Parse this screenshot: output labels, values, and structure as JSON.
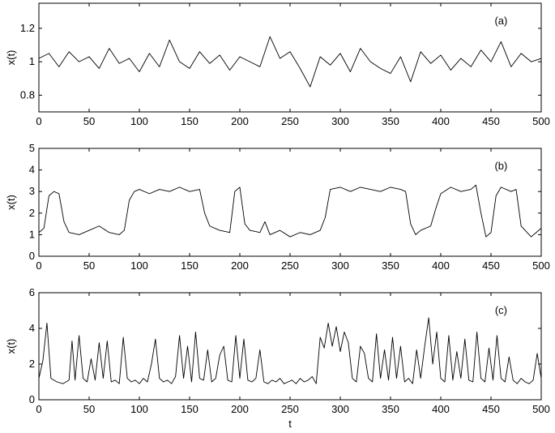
{
  "chart_data": [
    {
      "type": "line",
      "panel_label": "(a)",
      "xlabel": "",
      "ylabel": "x(t)",
      "xlim": [
        0,
        500
      ],
      "ylim": [
        0.7,
        1.35
      ],
      "xticks": [
        0,
        50,
        100,
        150,
        200,
        250,
        300,
        350,
        400,
        450,
        500
      ],
      "xtick_labels": [
        "0",
        "50",
        "100",
        "150",
        "200",
        "250",
        "300",
        "350",
        "400",
        "450",
        "500"
      ],
      "yticks": [
        0.8,
        1.0,
        1.2
      ],
      "ytick_labels": [
        "0.8",
        "1",
        "1.2"
      ],
      "grid": false,
      "line_color": "#000000",
      "series": [
        {
          "x": [
            0,
            10,
            20,
            30,
            40,
            50,
            60,
            70,
            80,
            90,
            100,
            110,
            120,
            130,
            140,
            150,
            160,
            170,
            180,
            190,
            200,
            210,
            220,
            230,
            240,
            250,
            260,
            270,
            280,
            290,
            300,
            310,
            320,
            330,
            340,
            350,
            360,
            370,
            380,
            390,
            400,
            410,
            420,
            430,
            440,
            450,
            460,
            470,
            480,
            490,
            500
          ],
          "y": [
            1.02,
            1.05,
            0.97,
            1.06,
            1.0,
            1.03,
            0.96,
            1.08,
            0.99,
            1.02,
            0.94,
            1.05,
            0.97,
            1.13,
            1.0,
            0.96,
            1.06,
            0.99,
            1.04,
            0.95,
            1.03,
            1.0,
            0.97,
            1.15,
            1.02,
            1.06,
            0.96,
            0.85,
            1.03,
            0.98,
            1.05,
            0.94,
            1.08,
            1.0,
            0.96,
            0.93,
            1.03,
            0.88,
            1.06,
            0.99,
            1.04,
            0.95,
            1.02,
            0.97,
            1.07,
            1.0,
            1.12,
            0.97,
            1.05,
            1.0,
            1.02
          ]
        }
      ]
    },
    {
      "type": "line",
      "panel_label": "(b)",
      "xlabel": "",
      "ylabel": "x(t)",
      "xlim": [
        0,
        500
      ],
      "ylim": [
        0,
        5
      ],
      "xticks": [
        0,
        50,
        100,
        150,
        200,
        250,
        300,
        350,
        400,
        450,
        500
      ],
      "xtick_labels": [
        "0",
        "50",
        "100",
        "150",
        "200",
        "250",
        "300",
        "350",
        "400",
        "450",
        "500"
      ],
      "yticks": [
        0,
        1,
        2,
        3,
        4,
        5
      ],
      "ytick_labels": [
        "0",
        "1",
        "2",
        "3",
        "4",
        "5"
      ],
      "grid": false,
      "line_color": "#000000",
      "series": [
        {
          "x": [
            0,
            5,
            10,
            15,
            20,
            25,
            30,
            40,
            50,
            60,
            70,
            80,
            85,
            90,
            95,
            100,
            110,
            120,
            130,
            140,
            150,
            160,
            165,
            170,
            180,
            190,
            195,
            200,
            205,
            210,
            220,
            225,
            230,
            240,
            250,
            260,
            270,
            280,
            285,
            290,
            300,
            310,
            320,
            330,
            340,
            350,
            360,
            365,
            370,
            375,
            380,
            390,
            395,
            400,
            410,
            420,
            430,
            435,
            440,
            445,
            450,
            455,
            460,
            470,
            475,
            480,
            490,
            495,
            500
          ],
          "y": [
            1.1,
            1.3,
            2.8,
            3.0,
            2.9,
            1.6,
            1.1,
            1.0,
            1.2,
            1.4,
            1.1,
            1.0,
            1.2,
            2.6,
            3.0,
            3.1,
            2.9,
            3.1,
            3.0,
            3.2,
            3.0,
            3.1,
            2.0,
            1.4,
            1.2,
            1.1,
            3.0,
            3.2,
            1.5,
            1.2,
            1.1,
            1.6,
            1.0,
            1.2,
            0.9,
            1.1,
            1.0,
            1.2,
            1.8,
            3.1,
            3.2,
            3.0,
            3.2,
            3.1,
            3.0,
            3.2,
            3.1,
            3.0,
            1.5,
            1.0,
            1.2,
            1.4,
            2.2,
            2.9,
            3.2,
            3.0,
            3.1,
            3.3,
            2.0,
            0.9,
            1.1,
            2.8,
            3.2,
            3.0,
            3.1,
            1.4,
            0.9,
            1.1,
            1.3
          ]
        }
      ]
    },
    {
      "type": "line",
      "panel_label": "(c)",
      "xlabel": "t",
      "ylabel": "x(t)",
      "xlim": [
        0,
        500
      ],
      "ylim": [
        0,
        6
      ],
      "xticks": [
        0,
        50,
        100,
        150,
        200,
        250,
        300,
        350,
        400,
        450,
        500
      ],
      "xtick_labels": [
        "0",
        "50",
        "100",
        "150",
        "200",
        "250",
        "300",
        "350",
        "400",
        "450",
        "500"
      ],
      "yticks": [
        0,
        2,
        4,
        6
      ],
      "ytick_labels": [
        "0",
        "2",
        "4",
        "6"
      ],
      "grid": false,
      "line_color": "#000000",
      "series": [
        {
          "x": [
            0,
            4,
            8,
            12,
            18,
            24,
            30,
            33,
            36,
            40,
            44,
            48,
            52,
            56,
            60,
            64,
            68,
            72,
            76,
            80,
            84,
            88,
            92,
            96,
            100,
            104,
            108,
            112,
            116,
            120,
            124,
            128,
            132,
            136,
            140,
            144,
            148,
            152,
            156,
            160,
            164,
            168,
            172,
            176,
            180,
            184,
            188,
            192,
            196,
            200,
            204,
            208,
            212,
            216,
            220,
            224,
            228,
            232,
            236,
            240,
            244,
            248,
            252,
            256,
            260,
            264,
            268,
            272,
            276,
            280,
            284,
            288,
            292,
            296,
            300,
            304,
            308,
            312,
            316,
            320,
            324,
            328,
            332,
            336,
            340,
            344,
            348,
            352,
            356,
            360,
            364,
            368,
            372,
            376,
            380,
            384,
            388,
            392,
            396,
            400,
            404,
            408,
            412,
            416,
            420,
            424,
            428,
            432,
            436,
            440,
            444,
            448,
            452,
            456,
            460,
            464,
            468,
            472,
            476,
            480,
            484,
            488,
            492,
            496,
            500
          ],
          "y": [
            1.2,
            2.2,
            4.3,
            1.2,
            1.0,
            0.9,
            1.1,
            3.3,
            1.1,
            3.6,
            1.2,
            1.0,
            2.3,
            1.1,
            3.2,
            1.2,
            3.3,
            1.0,
            1.1,
            0.9,
            3.5,
            1.2,
            1.0,
            1.1,
            0.9,
            1.2,
            1.0,
            2.0,
            3.4,
            1.2,
            1.0,
            1.1,
            0.9,
            1.3,
            3.6,
            1.2,
            3.0,
            1.0,
            3.8,
            1.2,
            1.1,
            2.8,
            1.0,
            1.2,
            2.5,
            3.0,
            1.1,
            1.0,
            3.6,
            1.2,
            3.4,
            1.1,
            1.0,
            1.2,
            2.8,
            1.0,
            0.9,
            1.1,
            1.0,
            1.2,
            0.9,
            1.0,
            1.1,
            0.9,
            1.2,
            1.0,
            1.1,
            1.3,
            0.9,
            3.5,
            2.9,
            4.3,
            3.0,
            4.1,
            2.7,
            3.8,
            3.2,
            1.2,
            1.0,
            3.0,
            2.6,
            1.2,
            1.0,
            3.7,
            1.2,
            2.8,
            1.1,
            3.5,
            1.2,
            3.0,
            1.0,
            1.2,
            0.9,
            2.8,
            1.2,
            3.0,
            4.6,
            2.0,
            3.8,
            1.2,
            1.0,
            3.6,
            1.1,
            2.7,
            1.2,
            3.4,
            1.1,
            1.0,
            3.8,
            1.2,
            1.0,
            2.9,
            1.1,
            3.6,
            1.2,
            1.0,
            2.4,
            1.1,
            0.9,
            1.2,
            1.0,
            0.9,
            1.1,
            2.6,
            1.2
          ]
        }
      ]
    }
  ]
}
